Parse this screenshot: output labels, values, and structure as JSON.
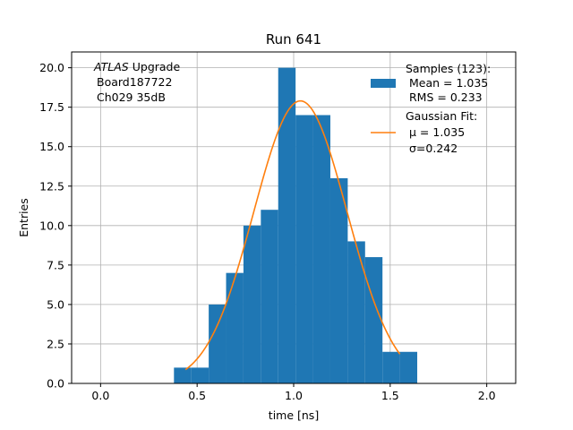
{
  "chart_data": {
    "type": "bar",
    "title": "Run 641",
    "xlabel": "time [ns]",
    "ylabel": "Entries",
    "xlim": [
      -0.15,
      2.15
    ],
    "ylim": [
      0,
      21
    ],
    "grid": true,
    "legend_position": "top-right",
    "xticks": [
      0.0,
      0.5,
      1.0,
      1.5,
      2.0
    ],
    "xtick_labels": [
      "0.0",
      "0.5",
      "1.0",
      "1.5",
      "2.0"
    ],
    "yticks": [
      0,
      2.5,
      5,
      7.5,
      10,
      12.5,
      15,
      17.5,
      20
    ],
    "ytick_labels": [
      "0.0",
      "2.5",
      "5.0",
      "7.5",
      "10.0",
      "12.5",
      "15.0",
      "17.5",
      "20.0"
    ],
    "histogram": {
      "name": "Samples (123):",
      "color": "#1f77b4",
      "bin_edges": [
        0.38,
        0.47,
        0.56,
        0.65,
        0.74,
        0.83,
        0.92,
        1.01,
        1.1,
        1.19,
        1.28,
        1.37,
        1.46,
        1.55,
        1.64
      ],
      "counts": [
        1,
        1,
        5,
        7,
        10,
        11,
        20,
        17,
        17,
        13,
        9,
        8,
        2,
        2
      ]
    },
    "fit": {
      "name": "Gaussian Fit:",
      "color": "#ff7f0e",
      "mu": 1.035,
      "sigma": 0.242,
      "amplitude": 17.9,
      "x_range": [
        0.44,
        1.55
      ]
    },
    "annotation_lines": [
      "Upgrade",
      "Board187722",
      "Ch029 35dB"
    ],
    "annotation_italic": "ATLAS",
    "legend": {
      "samples_lines": [
        "Samples (123):",
        "Mean = 1.035",
        "RMS = 0.233"
      ],
      "fit_lines": [
        "Gaussian Fit:",
        "μ = 1.035",
        "σ=0.242"
      ]
    }
  }
}
